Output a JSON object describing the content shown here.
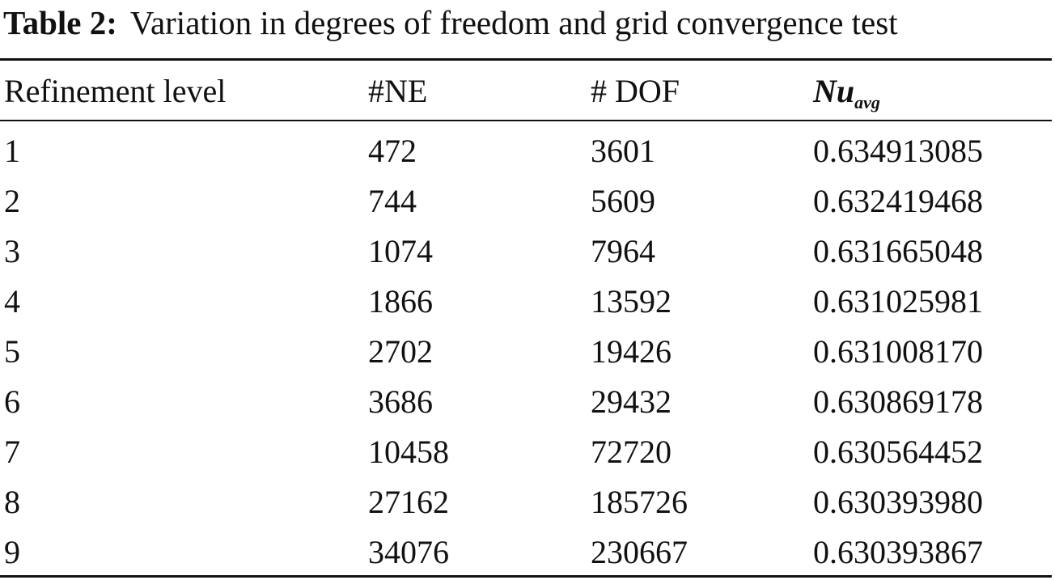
{
  "caption": {
    "label": "Table 2:",
    "text": "Variation in degrees of freedom and grid convergence test"
  },
  "table": {
    "headers": {
      "refinement_level": "Refinement level",
      "ne": "#NE",
      "dof": "# DOF",
      "nu_main": "Nu",
      "nu_sub": "avg"
    },
    "rows": [
      {
        "level": "1",
        "ne": "472",
        "dof": "3601",
        "nu": "0.634913085"
      },
      {
        "level": "2",
        "ne": "744",
        "dof": "5609",
        "nu": "0.632419468"
      },
      {
        "level": "3",
        "ne": "1074",
        "dof": "7964",
        "nu": "0.631665048"
      },
      {
        "level": "4",
        "ne": "1866",
        "dof": "13592",
        "nu": "0.631025981"
      },
      {
        "level": "5",
        "ne": "2702",
        "dof": "19426",
        "nu": "0.631008170"
      },
      {
        "level": "6",
        "ne": "3686",
        "dof": "29432",
        "nu": "0.630869178"
      },
      {
        "level": "7",
        "ne": "10458",
        "dof": "72720",
        "nu": "0.630564452"
      },
      {
        "level": "8",
        "ne": "27162",
        "dof": "185726",
        "nu": "0.630393980"
      },
      {
        "level": "9",
        "ne": "34076",
        "dof": "230667",
        "nu": "0.630393867"
      }
    ]
  }
}
